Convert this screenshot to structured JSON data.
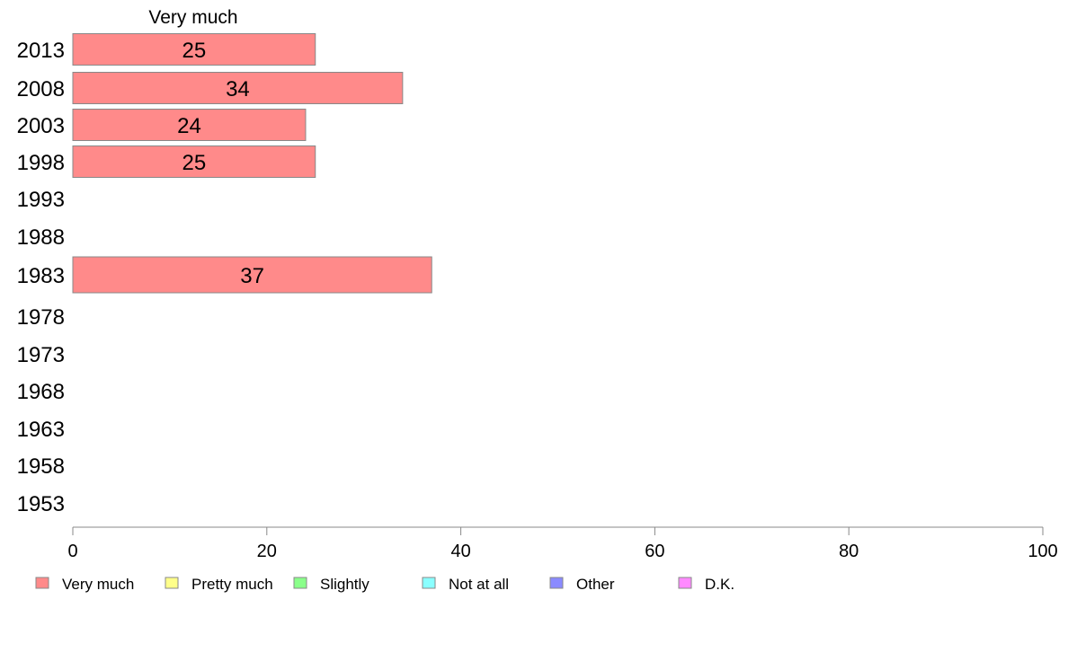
{
  "chart_data": {
    "type": "bar",
    "orientation": "horizontal",
    "stacked": true,
    "column_header": "Very much",
    "categories": [
      "2013",
      "2008",
      "2003",
      "1998",
      "1993",
      "1988",
      "1983",
      "1978",
      "1973",
      "1968",
      "1963",
      "1958",
      "1953"
    ],
    "series": [
      {
        "name": "Very much",
        "color": "#ff8a8a",
        "values": [
          25,
          34,
          24,
          25,
          null,
          null,
          37,
          null,
          null,
          null,
          null,
          null,
          null
        ]
      },
      {
        "name": "Pretty much",
        "color": "#ffff8a",
        "values": [
          null,
          null,
          null,
          null,
          null,
          null,
          null,
          null,
          null,
          null,
          null,
          null,
          null
        ]
      },
      {
        "name": "Slightly",
        "color": "#8aff8a",
        "values": [
          null,
          null,
          null,
          null,
          null,
          null,
          null,
          null,
          null,
          null,
          null,
          null,
          null
        ]
      },
      {
        "name": "Not at all",
        "color": "#8affff",
        "values": [
          null,
          null,
          null,
          null,
          null,
          null,
          null,
          null,
          null,
          null,
          null,
          null,
          null
        ]
      },
      {
        "name": "Other",
        "color": "#8a8aff",
        "values": [
          null,
          null,
          null,
          null,
          null,
          null,
          null,
          null,
          null,
          null,
          null,
          null,
          null
        ]
      },
      {
        "name": "D.K.",
        "color": "#ff8aff",
        "values": [
          null,
          null,
          null,
          null,
          null,
          null,
          null,
          null,
          null,
          null,
          null,
          null,
          null
        ]
      }
    ],
    "xlim": [
      0,
      100
    ],
    "xticks": [
      0,
      20,
      40,
      60,
      80,
      100
    ],
    "grid": false,
    "legend_position": "bottom"
  }
}
